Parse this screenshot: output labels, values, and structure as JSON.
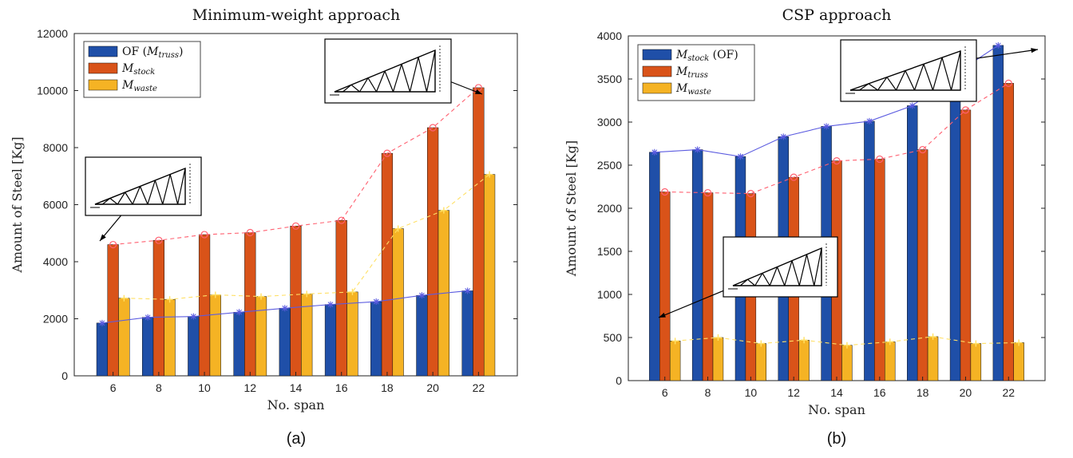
{
  "chart_data": [
    {
      "type": "bar",
      "title": "Minimum-weight approach",
      "xlabel": "No. span",
      "ylabel": "Amount of Steel [Kg]",
      "ylim": [
        0,
        12000
      ],
      "yticks": [
        0,
        2000,
        4000,
        6000,
        8000,
        10000,
        12000
      ],
      "categories": [
        "6",
        "8",
        "10",
        "12",
        "14",
        "16",
        "18",
        "20",
        "22"
      ],
      "legend_position": "top-left",
      "caption": "(a)",
      "series": [
        {
          "name": "OF (M_truss)",
          "legend_main": "OF (",
          "legend_italic": "M",
          "legend_sub": "truss",
          "legend_tail": ")",
          "color": "#1f4fa8",
          "values": [
            1850,
            2050,
            2080,
            2230,
            2370,
            2500,
            2600,
            2820,
            2980
          ]
        },
        {
          "name": "M_stock",
          "legend_main": "",
          "legend_italic": "M",
          "legend_sub": "stock",
          "legend_tail": "",
          "color": "#d95319",
          "values": [
            4600,
            4750,
            4950,
            5020,
            5250,
            5450,
            7800,
            8700,
            10100
          ]
        },
        {
          "name": "M_waste",
          "legend_main": "",
          "legend_italic": "M",
          "legend_sub": "waste",
          "legend_tail": "",
          "color": "#f5b324",
          "values": [
            2720,
            2680,
            2840,
            2780,
            2870,
            2940,
            5160,
            5800,
            7060
          ]
        }
      ],
      "lines": [
        {
          "of_series": 0,
          "color": "#5c5ce0",
          "dash": false,
          "marker": "star"
        },
        {
          "of_series": 1,
          "color": "#ff6070",
          "dash": true,
          "marker": "circle"
        },
        {
          "of_series": 2,
          "color": "#ffe066",
          "dash": true,
          "marker": "plus"
        }
      ]
    },
    {
      "type": "bar",
      "title": "CSP approach",
      "xlabel": "No. span",
      "ylabel": "Amount of Steel [Kg]",
      "ylim": [
        0,
        4000
      ],
      "yticks": [
        0,
        500,
        1000,
        1500,
        2000,
        2500,
        3000,
        3500,
        4000
      ],
      "categories": [
        "6",
        "8",
        "10",
        "12",
        "14",
        "16",
        "18",
        "20",
        "22"
      ],
      "legend_position": "top-left",
      "caption": "(b)",
      "series": [
        {
          "name": "M_stock (OF)",
          "legend_main": "",
          "legend_italic": "M",
          "legend_sub": "stock",
          "legend_tail": " (OF)",
          "color": "#1f4fa8",
          "values": [
            2650,
            2680,
            2600,
            2830,
            2950,
            3010,
            3190,
            3560,
            3890
          ]
        },
        {
          "name": "M_truss",
          "legend_main": "",
          "legend_italic": "M",
          "legend_sub": "truss",
          "legend_tail": "",
          "color": "#d95319",
          "values": [
            2190,
            2180,
            2170,
            2360,
            2550,
            2570,
            2680,
            3140,
            3450
          ]
        },
        {
          "name": "M_waste",
          "legend_main": "",
          "legend_italic": "M",
          "legend_sub": "waste",
          "legend_tail": "",
          "color": "#f5b324",
          "values": [
            460,
            500,
            430,
            470,
            410,
            450,
            510,
            430,
            440
          ]
        }
      ],
      "lines": [
        {
          "of_series": 0,
          "color": "#5c5ce0",
          "dash": false,
          "marker": "star"
        },
        {
          "of_series": 1,
          "color": "#ff6070",
          "dash": true,
          "marker": "circle"
        },
        {
          "of_series": 2,
          "color": "#ffe066",
          "dash": true,
          "marker": "plus"
        }
      ]
    }
  ]
}
